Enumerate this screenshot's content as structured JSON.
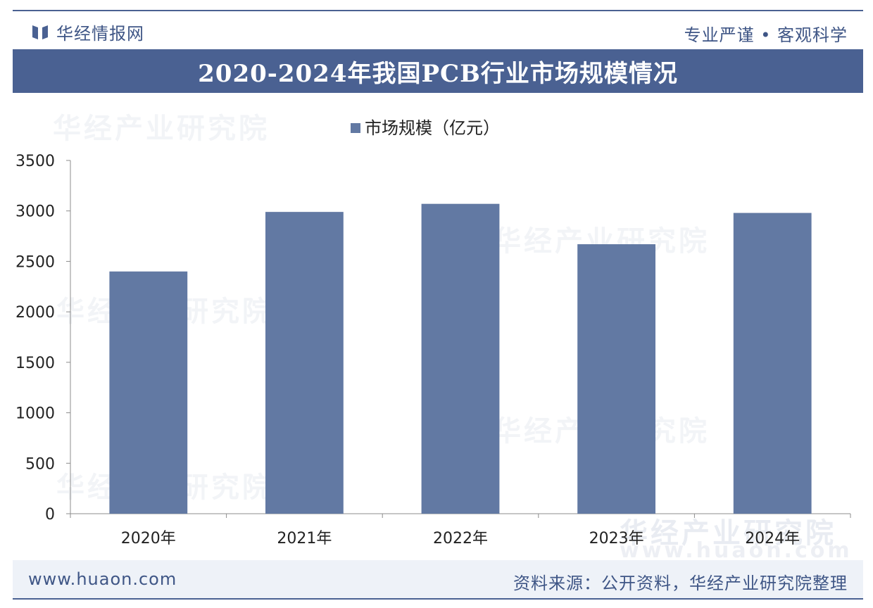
{
  "header": {
    "brand": "华经情报网",
    "slogan": "专业严谨 • 客观科学"
  },
  "title": "2020-2024年我国PCB行业市场规模情况",
  "watermark": {
    "cn": "华经产业研究院",
    "en": "www.huaon.com"
  },
  "footer": {
    "url": "www.huaon.com",
    "source": "资料来源：公开资料，华经产业研究院整理"
  },
  "colors": {
    "brand": "#4a6192",
    "bar": "#6279a3",
    "axis": "#8c8c8c",
    "text": "#222222"
  },
  "chart_data": {
    "type": "bar",
    "title": "2020-2024年我国PCB行业市场规模情况",
    "categories": [
      "2020年",
      "2021年",
      "2022年",
      "2023年",
      "2024年"
    ],
    "series": [
      {
        "name": "市场规模（亿元）",
        "values": [
          2400,
          2990,
          3070,
          2670,
          2980
        ]
      }
    ],
    "ylim": [
      0,
      3500
    ],
    "yticks": [
      0,
      500,
      1000,
      1500,
      2000,
      2500,
      3000,
      3500
    ],
    "xlabel": "",
    "ylabel": "",
    "legend_position": "top-center",
    "grid": false
  }
}
